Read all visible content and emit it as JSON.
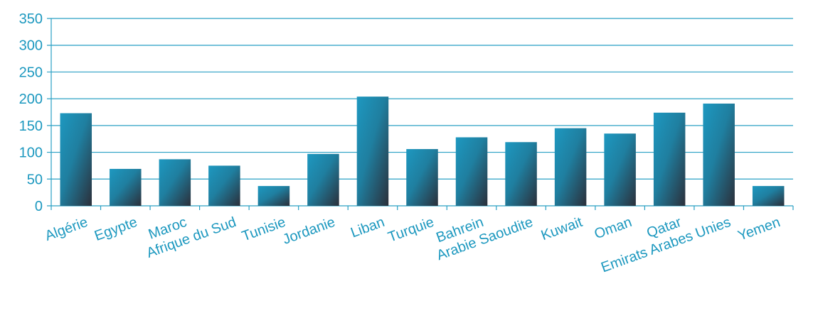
{
  "colors": {
    "axis": "#2aa0c4",
    "text": "#1c98bf",
    "bar_top": "#1e98c0",
    "bar_bottom": "#2b2f3a"
  },
  "chart_data": {
    "type": "bar",
    "title": "",
    "xlabel": "",
    "ylabel": "",
    "ylim": [
      0,
      350
    ],
    "yticks": [
      0,
      50,
      100,
      150,
      200,
      250,
      300,
      350
    ],
    "grid": true,
    "categories": [
      "Algérie",
      "Egypte",
      "Maroc",
      "Afrique du Sud",
      "Tunisie",
      "Jordanie",
      "Liban",
      "Turquie",
      "Bahrein",
      "Arabie Saoudite",
      "Kuwait",
      "Oman",
      "Qatar",
      "Emirats Arabes Unies",
      "Yemen"
    ],
    "values": [
      173,
      69,
      87,
      75,
      37,
      97,
      204,
      106,
      128,
      119,
      145,
      135,
      174,
      191,
      37
    ]
  }
}
